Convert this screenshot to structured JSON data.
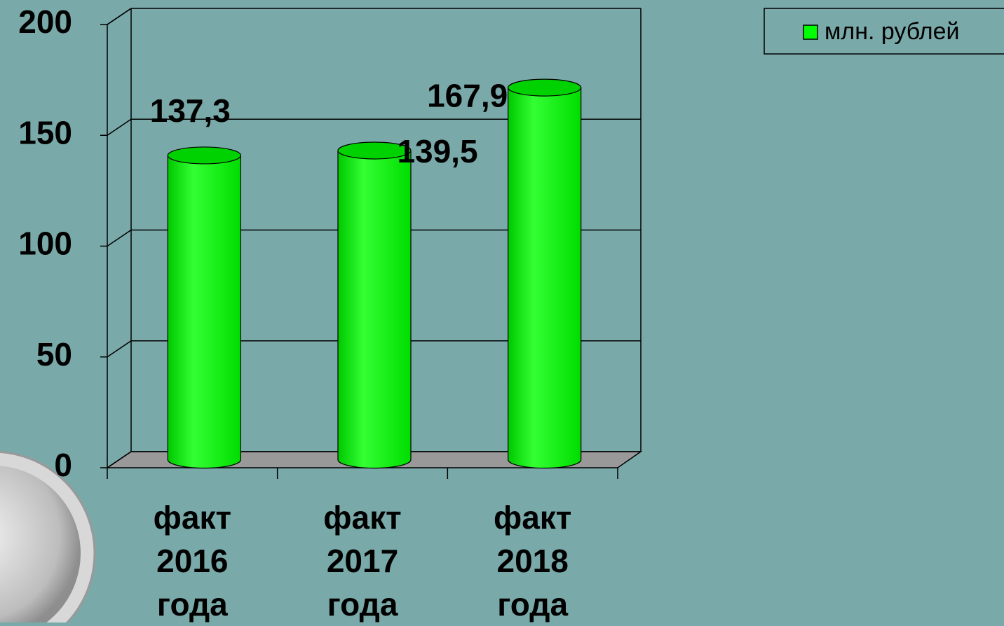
{
  "chart_data": {
    "type": "bar",
    "categories": [
      "факт 2016 года",
      "факт 2017 года",
      "факт 2018 года"
    ],
    "series": [
      {
        "name": "млн. рублей",
        "color": "#00ff00",
        "values": [
          137.3,
          139.5,
          167.9
        ],
        "value_labels": [
          "137,3",
          "139,5",
          "167,9"
        ]
      }
    ],
    "ylim": [
      0,
      200
    ],
    "yticks": [
      0,
      50,
      100,
      150,
      200
    ],
    "grid": true,
    "legend": "top-right"
  }
}
